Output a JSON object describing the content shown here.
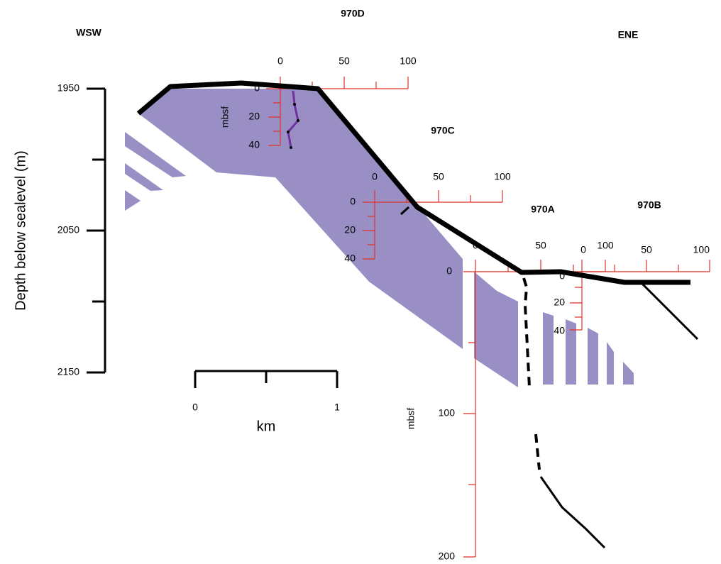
{
  "labels": {
    "left": "WSW",
    "right": "ENE"
  },
  "depth_axis": {
    "label": "Depth below sealevel (m)",
    "ticks": [
      1950,
      2050,
      2150
    ]
  },
  "scale_bar": {
    "unit": "km",
    "ticks": [
      0,
      1
    ]
  },
  "sites": [
    {
      "name": "970D",
      "x_ticks": [
        0,
        50,
        100
      ],
      "depth_ticks": [
        0,
        20,
        40
      ],
      "depth_label": "mbsf"
    },
    {
      "name": "970C",
      "x_ticks": [
        0,
        50,
        100
      ],
      "depth_ticks": [
        0,
        20,
        40
      ]
    },
    {
      "name": "970A",
      "x_ticks": [
        0,
        50,
        100
      ],
      "depth_ticks": [
        0,
        100,
        200
      ],
      "depth_label": "mbsf"
    },
    {
      "name": "970B",
      "x_ticks": [
        0,
        50,
        100
      ],
      "depth_ticks": [
        0,
        20,
        40
      ]
    }
  ]
}
